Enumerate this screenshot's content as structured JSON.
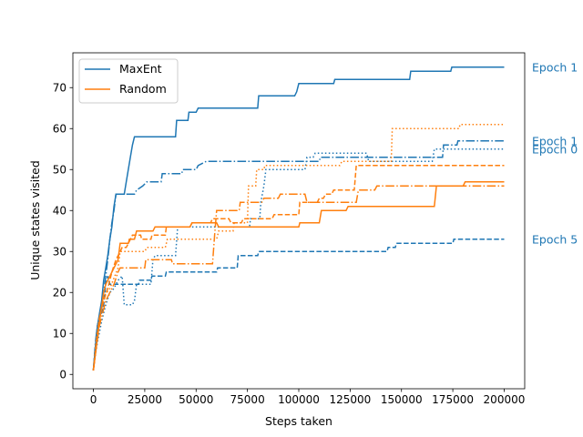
{
  "chart_data": {
    "type": "line",
    "xlabel": "Steps taken",
    "ylabel": "Unique states visited",
    "xlim": [
      -10000,
      210000
    ],
    "ylim": [
      -3.5,
      78.5
    ],
    "xticks": [
      0,
      25000,
      50000,
      75000,
      100000,
      125000,
      150000,
      175000,
      200000
    ],
    "yticks": [
      0,
      10,
      20,
      30,
      40,
      50,
      60,
      70
    ],
    "grid": false,
    "legend": {
      "position": "top-left",
      "entries": [
        "MaxEnt",
        "Random"
      ]
    },
    "colors": {
      "MaxEnt": "#1f77b4",
      "Random": "#ff7f0e"
    },
    "annotations": [
      {
        "text": "Epoch 1",
        "y": 75
      },
      {
        "text": "Epoch 1",
        "y": 57
      },
      {
        "text": "Epoch 0",
        "y": 55
      },
      {
        "text": "Epoch 5",
        "y": 33
      }
    ],
    "series": [
      {
        "name": "MaxEnt",
        "group": "MaxEnt",
        "style": "solid",
        "points": [
          [
            0,
            1
          ],
          [
            1000,
            7
          ],
          [
            1500,
            10
          ],
          [
            2000,
            12
          ],
          [
            3000,
            15
          ],
          [
            4000,
            18
          ],
          [
            5000,
            23
          ],
          [
            6000,
            26
          ],
          [
            7000,
            29
          ],
          [
            8000,
            33
          ],
          [
            9000,
            36
          ],
          [
            10000,
            41
          ],
          [
            11000,
            44
          ],
          [
            15000,
            44
          ],
          [
            16000,
            47
          ],
          [
            18000,
            53
          ],
          [
            19000,
            56
          ],
          [
            20000,
            58
          ],
          [
            40000,
            58
          ],
          [
            40500,
            62
          ],
          [
            46000,
            62
          ],
          [
            46500,
            64
          ],
          [
            50000,
            64
          ],
          [
            51000,
            65
          ],
          [
            80000,
            65
          ],
          [
            80500,
            68
          ],
          [
            98000,
            68
          ],
          [
            99000,
            69
          ],
          [
            100000,
            71
          ],
          [
            117000,
            71
          ],
          [
            117500,
            72
          ],
          [
            154000,
            72
          ],
          [
            154500,
            74
          ],
          [
            174000,
            74
          ],
          [
            174500,
            75
          ],
          [
            200000,
            75
          ]
        ]
      },
      {
        "name": "",
        "group": "MaxEnt",
        "style": "dashdot",
        "points": [
          [
            0,
            1
          ],
          [
            1000,
            8
          ],
          [
            2000,
            12
          ],
          [
            3000,
            14
          ],
          [
            4000,
            16
          ],
          [
            5000,
            20
          ],
          [
            6000,
            24
          ],
          [
            7000,
            28
          ],
          [
            8000,
            33
          ],
          [
            9000,
            37
          ],
          [
            10000,
            40
          ],
          [
            11000,
            44
          ],
          [
            20000,
            44
          ],
          [
            21000,
            45
          ],
          [
            24000,
            46
          ],
          [
            26000,
            47
          ],
          [
            33000,
            47
          ],
          [
            33500,
            49
          ],
          [
            43000,
            49
          ],
          [
            43500,
            50
          ],
          [
            50000,
            50
          ],
          [
            51000,
            51
          ],
          [
            55000,
            52
          ],
          [
            110000,
            52
          ],
          [
            110500,
            53
          ],
          [
            170000,
            53
          ],
          [
            170500,
            56
          ],
          [
            177000,
            56
          ],
          [
            177500,
            57
          ],
          [
            200000,
            57
          ]
        ]
      },
      {
        "name": "",
        "group": "MaxEnt",
        "style": "dotted",
        "points": [
          [
            0,
            1
          ],
          [
            1000,
            5
          ],
          [
            2000,
            8
          ],
          [
            4000,
            13
          ],
          [
            6000,
            17
          ],
          [
            8000,
            20
          ],
          [
            10000,
            21
          ],
          [
            12000,
            23
          ],
          [
            14000,
            24
          ],
          [
            15000,
            17
          ],
          [
            19000,
            17
          ],
          [
            20000,
            18
          ],
          [
            21000,
            22
          ],
          [
            28000,
            22
          ],
          [
            29000,
            28
          ],
          [
            30000,
            29
          ],
          [
            40000,
            29
          ],
          [
            41000,
            36
          ],
          [
            76000,
            36
          ],
          [
            76500,
            38
          ],
          [
            81000,
            38
          ],
          [
            81500,
            42
          ],
          [
            83000,
            46
          ],
          [
            84000,
            50
          ],
          [
            103000,
            50
          ],
          [
            104000,
            53
          ],
          [
            107000,
            53
          ],
          [
            108000,
            54
          ],
          [
            133000,
            54
          ],
          [
            134000,
            52
          ],
          [
            165000,
            52
          ],
          [
            166000,
            55
          ],
          [
            200000,
            55
          ]
        ]
      },
      {
        "name": "",
        "group": "MaxEnt",
        "style": "dashed",
        "points": [
          [
            0,
            1
          ],
          [
            1000,
            7
          ],
          [
            2000,
            12
          ],
          [
            3000,
            14
          ],
          [
            4000,
            15
          ],
          [
            5000,
            17
          ],
          [
            6000,
            22
          ],
          [
            7000,
            24
          ],
          [
            8000,
            22
          ],
          [
            22000,
            22
          ],
          [
            22500,
            23
          ],
          [
            28000,
            23
          ],
          [
            28500,
            24
          ],
          [
            35000,
            24
          ],
          [
            35500,
            25
          ],
          [
            60000,
            25
          ],
          [
            60500,
            26
          ],
          [
            70000,
            26
          ],
          [
            70500,
            29
          ],
          [
            80000,
            29
          ],
          [
            80500,
            30
          ],
          [
            143000,
            30
          ],
          [
            143500,
            31
          ],
          [
            147000,
            31
          ],
          [
            147500,
            32
          ],
          [
            175000,
            32
          ],
          [
            175500,
            33
          ],
          [
            200000,
            33
          ]
        ]
      },
      {
        "name": "Random",
        "group": "Random",
        "style": "solid",
        "points": [
          [
            0,
            1
          ],
          [
            1500,
            7
          ],
          [
            3000,
            13
          ],
          [
            5000,
            20
          ],
          [
            6000,
            22
          ],
          [
            8000,
            24
          ],
          [
            10000,
            26
          ],
          [
            12000,
            28
          ],
          [
            13000,
            32
          ],
          [
            17000,
            32
          ],
          [
            17500,
            33
          ],
          [
            20000,
            33
          ],
          [
            21000,
            35
          ],
          [
            29000,
            35
          ],
          [
            30000,
            36
          ],
          [
            47000,
            36
          ],
          [
            48000,
            37
          ],
          [
            60000,
            37
          ],
          [
            61000,
            36
          ],
          [
            100000,
            36
          ],
          [
            100500,
            37
          ],
          [
            110000,
            37
          ],
          [
            111000,
            40
          ],
          [
            123000,
            40
          ],
          [
            124000,
            41
          ],
          [
            166000,
            41
          ],
          [
            167000,
            46
          ],
          [
            180000,
            46
          ],
          [
            181000,
            47
          ],
          [
            200000,
            47
          ]
        ]
      },
      {
        "name": "",
        "group": "Random",
        "style": "dashed",
        "points": [
          [
            0,
            1
          ],
          [
            1500,
            8
          ],
          [
            3000,
            14
          ],
          [
            5000,
            18
          ],
          [
            7000,
            21
          ],
          [
            8000,
            23
          ],
          [
            9000,
            25
          ],
          [
            11000,
            28
          ],
          [
            13000,
            30
          ],
          [
            14000,
            31
          ],
          [
            16000,
            31
          ],
          [
            17000,
            32
          ],
          [
            19000,
            34
          ],
          [
            23000,
            34
          ],
          [
            23500,
            33
          ],
          [
            28000,
            33
          ],
          [
            28500,
            34
          ],
          [
            35000,
            34
          ],
          [
            35500,
            36
          ],
          [
            47000,
            36
          ],
          [
            48000,
            37
          ],
          [
            57000,
            37
          ],
          [
            58000,
            38
          ],
          [
            66000,
            38
          ],
          [
            67000,
            37
          ],
          [
            72000,
            37
          ],
          [
            73000,
            38
          ],
          [
            87000,
            38
          ],
          [
            88000,
            39
          ],
          [
            100000,
            39
          ],
          [
            100500,
            42
          ],
          [
            109000,
            42
          ],
          [
            110000,
            43
          ],
          [
            112000,
            43
          ],
          [
            113000,
            44
          ],
          [
            116000,
            44
          ],
          [
            117000,
            45
          ],
          [
            127000,
            45
          ],
          [
            128000,
            51
          ],
          [
            200000,
            51
          ]
        ]
      },
      {
        "name": "",
        "group": "Random",
        "style": "dashdot",
        "points": [
          [
            0,
            1
          ],
          [
            1500,
            7
          ],
          [
            3000,
            12
          ],
          [
            5000,
            16
          ],
          [
            6000,
            18
          ],
          [
            8000,
            20
          ],
          [
            10000,
            22
          ],
          [
            12000,
            25
          ],
          [
            13000,
            26
          ],
          [
            25000,
            26
          ],
          [
            25500,
            28
          ],
          [
            38000,
            28
          ],
          [
            38500,
            27
          ],
          [
            58000,
            27
          ],
          [
            59000,
            34
          ],
          [
            60000,
            40
          ],
          [
            71000,
            40
          ],
          [
            71500,
            42
          ],
          [
            82000,
            42
          ],
          [
            83000,
            43
          ],
          [
            90000,
            43
          ],
          [
            91000,
            44
          ],
          [
            103000,
            44
          ],
          [
            104000,
            42
          ],
          [
            128000,
            42
          ],
          [
            129000,
            45
          ],
          [
            137000,
            45
          ],
          [
            138000,
            46
          ],
          [
            200000,
            46
          ]
        ]
      },
      {
        "name": "",
        "group": "Random",
        "style": "dotted",
        "points": [
          [
            0,
            1
          ],
          [
            1500,
            9
          ],
          [
            3000,
            14
          ],
          [
            5000,
            19
          ],
          [
            8000,
            21
          ],
          [
            12000,
            26
          ],
          [
            13000,
            30
          ],
          [
            25000,
            30
          ],
          [
            26000,
            31
          ],
          [
            35000,
            31
          ],
          [
            36000,
            33
          ],
          [
            60000,
            33
          ],
          [
            61000,
            35
          ],
          [
            68000,
            35
          ],
          [
            68500,
            37
          ],
          [
            75000,
            37
          ],
          [
            75500,
            46
          ],
          [
            79000,
            46
          ],
          [
            79500,
            50
          ],
          [
            83000,
            50
          ],
          [
            83500,
            51
          ],
          [
            120000,
            51
          ],
          [
            121000,
            52
          ],
          [
            145000,
            52
          ],
          [
            145500,
            60
          ],
          [
            178000,
            60
          ],
          [
            178500,
            61
          ],
          [
            200000,
            61
          ]
        ]
      }
    ]
  }
}
